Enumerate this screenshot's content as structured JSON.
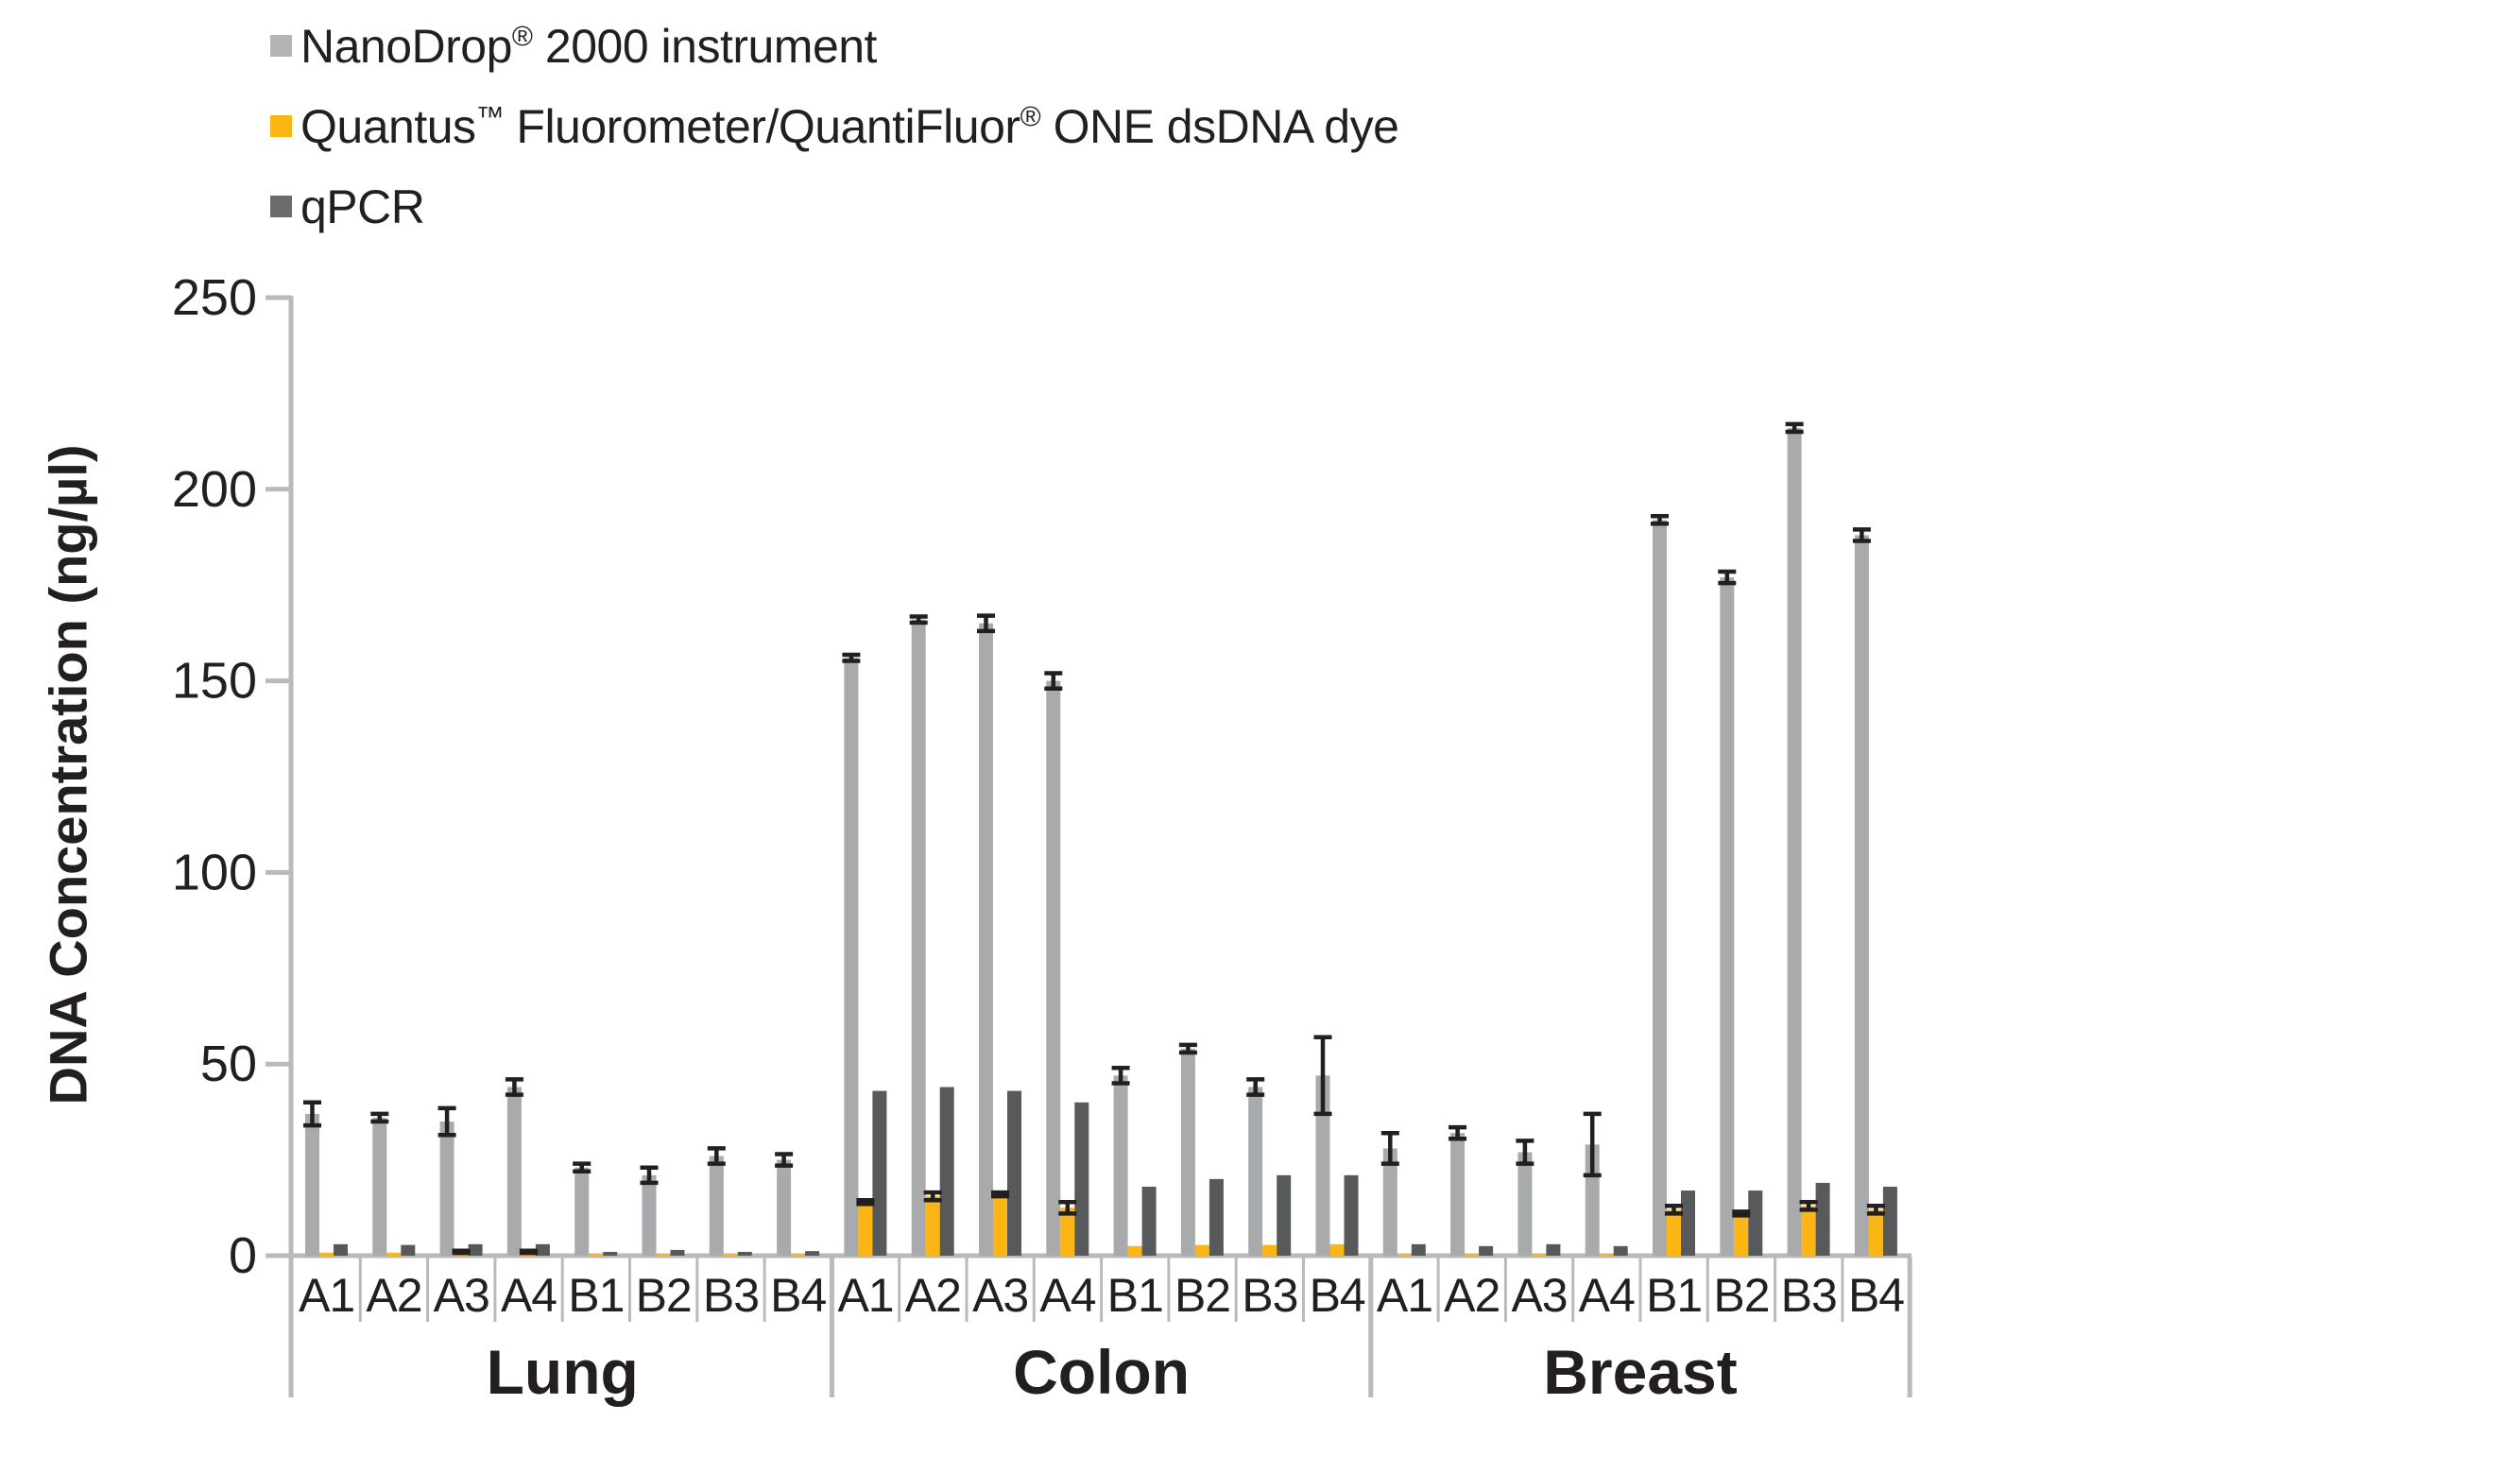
{
  "figure": {
    "background": "#ffffff",
    "text_color": "#231f20",
    "axis_color": "#b9babc",
    "error_bar_color": "#231f20"
  },
  "legend": {
    "items": [
      {
        "id": "nanodrop",
        "swatch_color": "#b3b4b6",
        "segments": [
          {
            "t": "NanoDrop"
          },
          {
            "t": "®",
            "sup": true
          },
          {
            "t": " 2000 instrument"
          }
        ]
      },
      {
        "id": "quantus",
        "swatch_color": "#fbb615",
        "segments": [
          {
            "t": "Quantus"
          },
          {
            "t": "™",
            "sup": true
          },
          {
            "t": " Fluorometer/QuantiFluor"
          },
          {
            "t": "®",
            "sup": true
          },
          {
            "t": " ONE dsDNA dye"
          }
        ]
      },
      {
        "id": "qpcr",
        "swatch_color": "#6a6b6d",
        "segments": [
          {
            "t": "qPCR"
          }
        ]
      }
    ]
  },
  "chart_data": {
    "type": "bar",
    "title": "",
    "xlabel": "",
    "ylabel": "DNA Concentration (ng/µl)",
    "ylim": [
      0,
      250
    ],
    "yticks": [
      0,
      50,
      100,
      150,
      200,
      250
    ],
    "grid": false,
    "legend_position": "top-left",
    "series": [
      {
        "id": "nanodrop",
        "name": "NanoDrop® 2000 instrument",
        "color": "#a9aaac"
      },
      {
        "id": "quantus",
        "name": "Quantus™ Fluorometer/QuantiFluor® ONE dsDNA dye",
        "color": "#fbb615"
      },
      {
        "id": "qpcr",
        "name": "qPCR",
        "color": "#58595b"
      }
    ],
    "groups": [
      {
        "name": "Lung",
        "samples": [
          {
            "label": "A1",
            "nanodrop": 37,
            "nanodrop_err": 3,
            "quantus": 0.8,
            "quantus_err": 0,
            "qpcr": 3,
            "qpcr_err": 0
          },
          {
            "label": "A2",
            "nanodrop": 36,
            "nanodrop_err": 1,
            "quantus": 0.8,
            "quantus_err": 0,
            "qpcr": 2.8,
            "qpcr_err": 0
          },
          {
            "label": "A3",
            "nanodrop": 35,
            "nanodrop_err": 3.5,
            "quantus": 1,
            "quantus_err": 0.3,
            "qpcr": 3,
            "qpcr_err": 0
          },
          {
            "label": "A4",
            "nanodrop": 44,
            "nanodrop_err": 2,
            "quantus": 1,
            "quantus_err": 0.3,
            "qpcr": 3,
            "qpcr_err": 0
          },
          {
            "label": "B1",
            "nanodrop": 23,
            "nanodrop_err": 1,
            "quantus": 0.3,
            "quantus_err": 0,
            "qpcr": 1,
            "qpcr_err": 0
          },
          {
            "label": "B2",
            "nanodrop": 21,
            "nanodrop_err": 2,
            "quantus": 0.3,
            "quantus_err": 0,
            "qpcr": 1.5,
            "qpcr_err": 0
          },
          {
            "label": "B3",
            "nanodrop": 26,
            "nanodrop_err": 2,
            "quantus": 0.3,
            "quantus_err": 0,
            "qpcr": 1,
            "qpcr_err": 0
          },
          {
            "label": "B4",
            "nanodrop": 25,
            "nanodrop_err": 1.5,
            "quantus": 0.3,
            "quantus_err": 0,
            "qpcr": 1.2,
            "qpcr_err": 0
          }
        ]
      },
      {
        "name": "Colon",
        "samples": [
          {
            "label": "A1",
            "nanodrop": 156,
            "nanodrop_err": 0.8,
            "quantus": 14,
            "quantus_err": 0.5,
            "qpcr": 43,
            "qpcr_err": 0
          },
          {
            "label": "A2",
            "nanodrop": 166,
            "nanodrop_err": 0.8,
            "quantus": 15.5,
            "quantus_err": 1,
            "qpcr": 44,
            "qpcr_err": 0
          },
          {
            "label": "A3",
            "nanodrop": 165,
            "nanodrop_err": 2,
            "quantus": 16,
            "quantus_err": 0.5,
            "qpcr": 43,
            "qpcr_err": 0
          },
          {
            "label": "A4",
            "nanodrop": 150,
            "nanodrop_err": 2,
            "quantus": 12.5,
            "quantus_err": 1.5,
            "qpcr": 40,
            "qpcr_err": 0
          },
          {
            "label": "B1",
            "nanodrop": 47,
            "nanodrop_err": 2,
            "quantus": 2.5,
            "quantus_err": 0,
            "qpcr": 18,
            "qpcr_err": 0
          },
          {
            "label": "B2",
            "nanodrop": 54,
            "nanodrop_err": 1,
            "quantus": 2.8,
            "quantus_err": 0,
            "qpcr": 20,
            "qpcr_err": 0
          },
          {
            "label": "B3",
            "nanodrop": 44,
            "nanodrop_err": 2,
            "quantus": 2.8,
            "quantus_err": 0,
            "qpcr": 21,
            "qpcr_err": 0
          },
          {
            "label": "B4",
            "nanodrop": 47,
            "nanodrop_err": 10,
            "quantus": 3,
            "quantus_err": 0,
            "qpcr": 21,
            "qpcr_err": 0
          }
        ]
      },
      {
        "name": "Breast",
        "samples": [
          {
            "label": "A1",
            "nanodrop": 28,
            "nanodrop_err": 4,
            "quantus": 0.3,
            "quantus_err": 0,
            "qpcr": 3,
            "qpcr_err": 0
          },
          {
            "label": "A2",
            "nanodrop": 32,
            "nanodrop_err": 1.5,
            "quantus": 0.3,
            "quantus_err": 0,
            "qpcr": 2.5,
            "qpcr_err": 0
          },
          {
            "label": "A3",
            "nanodrop": 27,
            "nanodrop_err": 3,
            "quantus": 0.3,
            "quantus_err": 0,
            "qpcr": 3,
            "qpcr_err": 0
          },
          {
            "label": "A4",
            "nanodrop": 29,
            "nanodrop_err": 8,
            "quantus": 0.3,
            "quantus_err": 0,
            "qpcr": 2.5,
            "qpcr_err": 0
          },
          {
            "label": "B1",
            "nanodrop": 192,
            "nanodrop_err": 1,
            "quantus": 12,
            "quantus_err": 1,
            "qpcr": 17,
            "qpcr_err": 0
          },
          {
            "label": "B2",
            "nanodrop": 177,
            "nanodrop_err": 1.5,
            "quantus": 11,
            "quantus_err": 0.5,
            "qpcr": 17,
            "qpcr_err": 0
          },
          {
            "label": "B3",
            "nanodrop": 216,
            "nanodrop_err": 1,
            "quantus": 13,
            "quantus_err": 1,
            "qpcr": 19,
            "qpcr_err": 0
          },
          {
            "label": "B4",
            "nanodrop": 188,
            "nanodrop_err": 1.5,
            "quantus": 12,
            "quantus_err": 1,
            "qpcr": 18,
            "qpcr_err": 0
          }
        ]
      }
    ]
  }
}
